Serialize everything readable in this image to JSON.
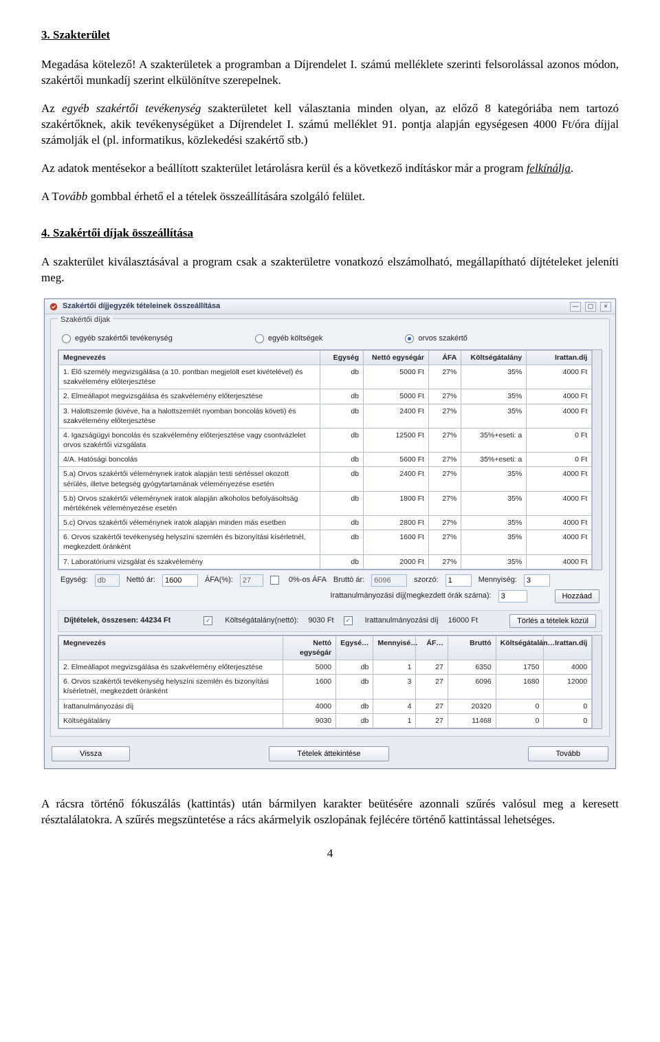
{
  "doc": {
    "s3_heading": "3.  Szakterület",
    "p1": "Megadása kötelező! A szakterületek a programban a Díjrendelet I. számú melléklete szerinti felsorolással azonos módon, szakértői munkadíj szerint elkülönítve szerepelnek.",
    "p2_a": "Az ",
    "p2_it": "egyéb szakértői tevékenység",
    "p2_b": " szakterületet kell választania minden olyan, az előző 8 kategóriába nem tartozó szakértőknek, akik tevékenységüket a Díjrendelet I. számú melléklet 91. pontja alapján egységesen 4000 Ft/óra díjjal számolják el (pl. informatikus, közlekedési szakértő stb.)",
    "p3_a": "Az adatok mentésekor a beállított szakterület letárolásra kerül és a következő indításkor már a program ",
    "p3_u_it": "felkínálja",
    "p3_b": ".",
    "p4_a": "A T",
    "p4_it": "ovább",
    "p4_b": " gombbal érhető el a tételek összeállítására szolgáló felület.",
    "s4_heading": "4.  Szakértői díjak összeállítása",
    "p5": "A szakterület kiválasztásával a program csak a szakterületre vonatkozó elszámolható, megállapítható díjtételeket jeleníti meg.",
    "p6": "A rácsra történő fókuszálás (kattintás) után bármilyen karakter beütésére azonnali szűrés valósul meg a keresett résztalálatokra. A szűrés megszüntetése a rács akármelyik oszlopának fejlécére történő kattintással lehetséges.",
    "page_number": "4"
  },
  "win": {
    "title": "Szakértői díjjegyzék tételeinek összeállítása",
    "fieldset_legend": "Szakértői díjak",
    "radios": [
      {
        "label": "egyéb szakértői tevékenység",
        "selected": false
      },
      {
        "label": "egyéb költségek",
        "selected": false
      },
      {
        "label": "orvos szakértő",
        "selected": true
      }
    ],
    "grid1": {
      "cols": [
        {
          "label": "Megnevezés",
          "w": "48%"
        },
        {
          "label": "Egység",
          "w": "8%"
        },
        {
          "label": "Nettó egységár",
          "w": "12%"
        },
        {
          "label": "ÁFA",
          "w": "6%"
        },
        {
          "label": "Költségátalány",
          "w": "12%"
        },
        {
          "label": "Irattan.díj",
          "w": "12%"
        }
      ],
      "rows": [
        [
          "1. Élő személy megvizsgálása (a 10. pontban megjelölt eset kivételével) és szakvélemény előterjesztése",
          "db",
          "5000 Ft",
          "27%",
          "35%",
          "4000 Ft"
        ],
        [
          "2. Elmeállapot megvizsgálása és szakvélemény előterjesztése",
          "db",
          "5000 Ft",
          "27%",
          "35%",
          "4000 Ft"
        ],
        [
          "3. Halottszemle (kivéve, ha a halottszemlét nyomban boncolás követi) és szakvélemény előterjesztése",
          "db",
          "2400 Ft",
          "27%",
          "35%",
          "4000 Ft"
        ],
        [
          "4. Igazságügyi boncolás és szakvélemény előterjesztése vagy csontvázlelet orvos szakértői vizsgálata",
          "db",
          "12500 Ft",
          "27%",
          "35%+eseti: a",
          "0 Ft"
        ],
        [
          "4/A. Hatósági boncolás",
          "db",
          "5600 Ft",
          "27%",
          "35%+eseti: a",
          "0 Ft"
        ],
        [
          "5.a) Orvos szakértői véleménynek iratok alapján testi sértéssel okozott sérülés, illetve betegség gyógytartamának véleményezése esetén",
          "db",
          "2400 Ft",
          "27%",
          "35%",
          "4000 Ft"
        ],
        [
          "5.b) Orvos szakértői véleménynek iratok alapján alkoholos befolyásoltság mértékének véleményezése esetén",
          "db",
          "1800 Ft",
          "27%",
          "35%",
          "4000 Ft"
        ],
        [
          "5.c) Orvos szakértői véleménynek iratok alapján minden más esetben",
          "db",
          "2800 Ft",
          "27%",
          "35%",
          "4000 Ft"
        ],
        [
          "6. Orvos szakértői tevékenység helyszíni szemlén és bizonyítási kísérletnél, megkezdett óránként",
          "db",
          "1600 Ft",
          "27%",
          "35%",
          "4000 Ft"
        ],
        [
          "7. Laboratóriumi vizsgálat és szakvélemény",
          "db",
          "2000 Ft",
          "27%",
          "35%",
          "4000 Ft"
        ]
      ]
    },
    "ctrl": {
      "egyseg_label": "Egység:",
      "egyseg": "db",
      "netto_label": "Nettó ár:",
      "netto": "1600",
      "afa_label": "ÁFA(%):",
      "afa": "27",
      "afa0_label": "0%-os ÁFA",
      "brutto_label": "Bruttó ár:",
      "brutto": "6096",
      "szorzo_label": "szorzó:",
      "szorzo": "1",
      "menny_label": "Mennyiség:",
      "menny": "3",
      "irat_label": "Irattanulmányozási díj(megkezdett órák száma):",
      "irat": "3",
      "add_btn": "Hozzáad"
    },
    "subbar": {
      "title": "Díjtételek, összesen: 44234 Ft",
      "chk1_label": "Költségátalány(nettó):",
      "chk1_val": "9030 Ft",
      "chk2_label": "Irattanulmányozási díj",
      "chk2_val": "16000 Ft",
      "del_btn": "Törlés a tételek közül"
    },
    "grid2": {
      "cols": [
        {
          "label": "Megnevezés",
          "w": "42%"
        },
        {
          "label": "Nettó egységár",
          "w": "10%"
        },
        {
          "label": "Egysé…",
          "w": "7%"
        },
        {
          "label": "Mennyisé…",
          "w": "8%"
        },
        {
          "label": "ÁF…",
          "w": "6%"
        },
        {
          "label": "Bruttó",
          "w": "9%"
        },
        {
          "label": "Költségátalán…",
          "w": "9%"
        },
        {
          "label": "Irattan.díj",
          "w": "9%"
        }
      ],
      "rows": [
        [
          "2. Elmeállapot megvizsgálása és szakvélemény előterjesztése",
          "5000",
          "db",
          "1",
          "27",
          "6350",
          "1750",
          "4000"
        ],
        [
          "6. Orvos szakértői tevékenység helyszíni szemlén és bizonyítási kísérletnél, megkezdett óránként",
          "1600",
          "db",
          "3",
          "27",
          "6096",
          "1680",
          "12000"
        ],
        [
          "Irattanulmányozási díj",
          "4000",
          "db",
          "4",
          "27",
          "20320",
          "0",
          "0"
        ],
        [
          "Költségátalány",
          "9030",
          "db",
          "1",
          "27",
          "11468",
          "0",
          "0"
        ]
      ]
    },
    "btns": {
      "back": "Vissza",
      "review": "Tételek áttekintése",
      "next": "Tovább"
    }
  }
}
